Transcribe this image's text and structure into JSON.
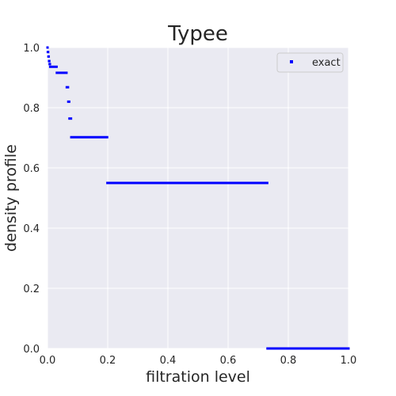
{
  "chart_data": {
    "type": "scatter",
    "title": "Typee",
    "xlabel": "filtration level",
    "ylabel": "density profile",
    "xlim": [
      0,
      1
    ],
    "ylim": [
      0,
      1
    ],
    "xticks": [
      "0.0",
      "0.2",
      "0.4",
      "0.6",
      "0.8",
      "1.0"
    ],
    "yticks": [
      "0.0",
      "0.2",
      "0.4",
      "0.6",
      "0.8",
      "1.0"
    ],
    "grid": true,
    "legend_position": "top-right",
    "colors": {
      "background": "#eaeaf2",
      "grid": "#ffffff",
      "series": "#0000ff"
    },
    "series": [
      {
        "name": "exact",
        "segments": [
          {
            "x_start": 0.0,
            "x_end": 0.0,
            "y": 1.0
          },
          {
            "x_start": 0.001,
            "x_end": 0.002,
            "y": 0.985
          },
          {
            "x_start": 0.003,
            "x_end": 0.004,
            "y": 0.97
          },
          {
            "x_start": 0.005,
            "x_end": 0.006,
            "y": 0.955
          },
          {
            "x_start": 0.007,
            "x_end": 0.008,
            "y": 0.945
          },
          {
            "x_start": 0.009,
            "x_end": 0.03,
            "y": 0.936
          },
          {
            "x_start": 0.031,
            "x_end": 0.063,
            "y": 0.916
          },
          {
            "x_start": 0.064,
            "x_end": 0.068,
            "y": 0.868
          },
          {
            "x_start": 0.069,
            "x_end": 0.072,
            "y": 0.82
          },
          {
            "x_start": 0.073,
            "x_end": 0.078,
            "y": 0.764
          },
          {
            "x_start": 0.079,
            "x_end": 0.198,
            "y": 0.702
          },
          {
            "x_start": 0.199,
            "x_end": 0.73,
            "y": 0.55
          },
          {
            "x_start": 0.731,
            "x_end": 1.0,
            "y": 0.0
          }
        ]
      }
    ]
  }
}
